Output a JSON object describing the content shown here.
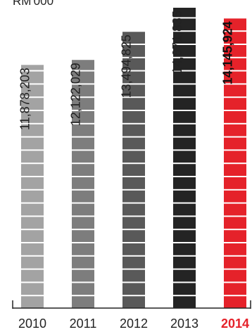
{
  "chart_data": {
    "type": "bar",
    "unit_label": "RM'000",
    "categories": [
      "2010",
      "2011",
      "2012",
      "2013",
      "2014"
    ],
    "values": [
      11878203,
      12122029,
      13494825,
      14671835,
      14145924
    ],
    "value_labels": [
      "11,878,203",
      "12,122,029",
      "13,494,825",
      "14,671,835",
      "14,145,924"
    ],
    "highlight_index": 4,
    "colors": [
      "#a3a3a3",
      "#7d7d7d",
      "#595959",
      "#242424",
      "#e5222a"
    ],
    "ylim": [
      0,
      14671835
    ],
    "grid": false,
    "legend": "none"
  }
}
